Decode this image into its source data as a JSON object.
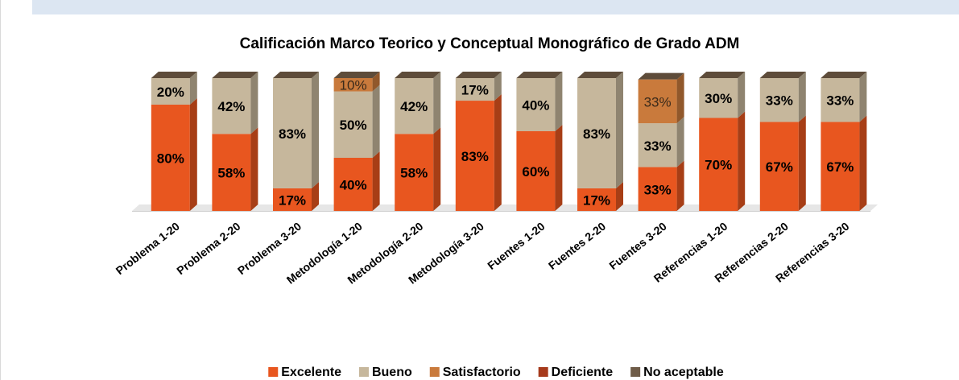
{
  "chart_data": {
    "type": "stacked_bar_3d",
    "title": "Calificación Marco Teorico y Conceptual  Monográfico de Grado ADM",
    "categories": [
      "Problema 1-20",
      "Problema 2-20",
      "Problema 3-20",
      "Metodología 1-20",
      "Metodología 2-20",
      "Metodología 3-20",
      "Fuentes 1-20",
      "Fuentes 2-20",
      "Fuentes 3-20",
      "Referencias 1-20",
      "Referencias 2-20",
      "Referencias 3-20"
    ],
    "ylim": [
      0,
      100
    ],
    "legend": "bottom",
    "series": [
      {
        "name": "Excelente",
        "color": "#e8561f",
        "values": [
          80,
          58,
          17,
          40,
          58,
          83,
          60,
          17,
          33,
          70,
          67,
          67
        ],
        "value_labels": [
          "80%",
          "58%",
          "17%",
          "40%",
          "58%",
          "83%",
          "60%",
          "17%",
          "33%",
          "70%",
          "67%",
          "67%"
        ]
      },
      {
        "name": "Bueno",
        "color": "#c6b79c",
        "values": [
          20,
          42,
          83,
          50,
          42,
          17,
          40,
          83,
          33,
          30,
          33,
          33
        ],
        "value_labels": [
          "20%",
          "42%",
          "83%",
          "50%",
          "42%",
          "17%",
          "40%",
          "83%",
          "33%",
          "30%",
          "33%",
          "33%"
        ]
      },
      {
        "name": "Satisfactorio",
        "color": "#c97a3c",
        "values": [
          0,
          0,
          0,
          10,
          0,
          0,
          0,
          0,
          33,
          0,
          0,
          0
        ],
        "value_labels": [
          null,
          null,
          null,
          "10%",
          null,
          null,
          null,
          null,
          "33%",
          null,
          null,
          null
        ]
      },
      {
        "name": "Deficiente",
        "color": "#a63a1c",
        "values": [
          0,
          0,
          0,
          0,
          0,
          0,
          0,
          0,
          0,
          0,
          0,
          0
        ]
      },
      {
        "name": "No aceptable",
        "color": "#6f5c48",
        "values": [
          0,
          0,
          0,
          0,
          0,
          0,
          0,
          0,
          0,
          0,
          0,
          0
        ]
      }
    ]
  }
}
